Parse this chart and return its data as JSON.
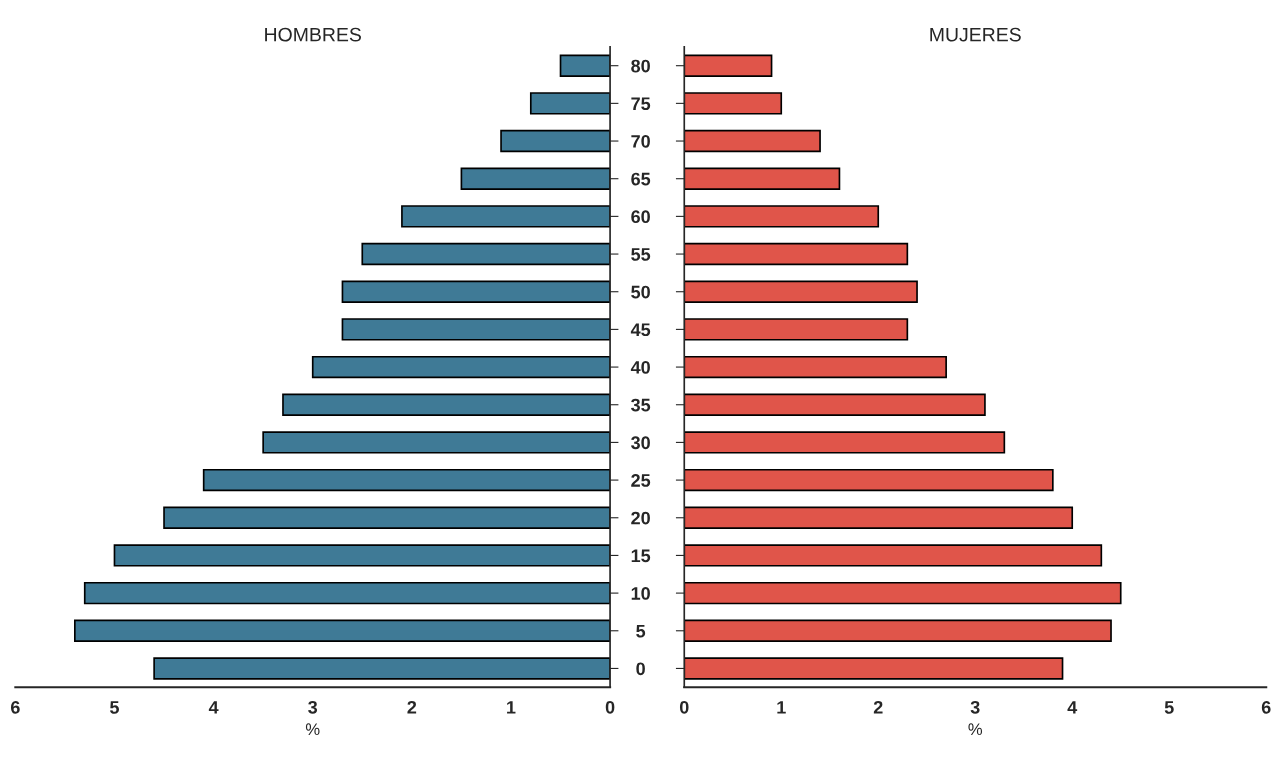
{
  "chart_data": [
    {
      "type": "bar",
      "orientation": "horizontal",
      "title": "HOMBRES",
      "xlabel": "%",
      "categories": [
        "80",
        "75",
        "70",
        "65",
        "60",
        "55",
        "50",
        "45",
        "40",
        "35",
        "30",
        "25",
        "20",
        "15",
        "10",
        "5",
        "0"
      ],
      "values": [
        0.5,
        0.8,
        1.1,
        1.5,
        2.1,
        2.5,
        2.7,
        2.7,
        3.0,
        3.3,
        3.5,
        4.1,
        4.5,
        5.0,
        5.3,
        5.4,
        4.6
      ],
      "color": "#3f7a96",
      "xlim": [
        6,
        0
      ],
      "xticks": [
        6,
        5,
        4,
        3,
        2,
        1,
        0
      ],
      "grid": false
    },
    {
      "type": "bar",
      "orientation": "horizontal",
      "title": "MUJERES",
      "xlabel": "%",
      "categories": [
        "80",
        "75",
        "70",
        "65",
        "60",
        "55",
        "50",
        "45",
        "40",
        "35",
        "30",
        "25",
        "20",
        "15",
        "10",
        "5",
        "0"
      ],
      "values": [
        0.9,
        1.0,
        1.4,
        1.6,
        2.0,
        2.3,
        2.4,
        2.3,
        2.7,
        3.1,
        3.3,
        3.8,
        4.0,
        4.3,
        4.5,
        4.4,
        3.9
      ],
      "color": "#e0554a",
      "xlim": [
        0,
        6
      ],
      "xticks": [
        0,
        1,
        2,
        3,
        4,
        5,
        6
      ],
      "grid": false,
      "tick_labels": "x"
    }
  ]
}
